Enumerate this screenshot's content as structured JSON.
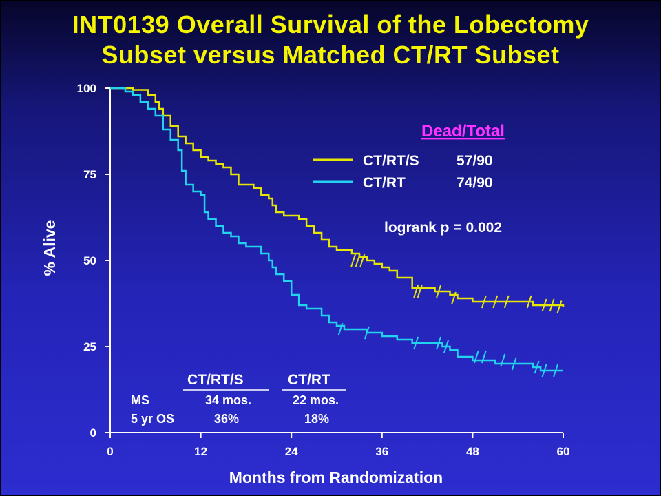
{
  "slide": {
    "title_line1": "INT0139 Overall Survival of the Lobectomy",
    "title_line2": "Subset versus Matched CT/RT Subset"
  },
  "colors": {
    "title": "#f5f500",
    "series1": "#e6e600",
    "series2": "#22d3ee",
    "dead_total": "#ff33ff",
    "text": "#ffffff"
  },
  "legend": {
    "heading": "Dead/Total",
    "rows": [
      {
        "label": "CT/RT/S",
        "value": "57/90"
      },
      {
        "label": "CT/RT",
        "value": "74/90"
      }
    ]
  },
  "annotation": "logrank p = 0.002",
  "summary_table": {
    "headers": [
      "CT/RT/S",
      "CT/RT"
    ],
    "rows": [
      {
        "label": "MS",
        "values": [
          "34 mos.",
          "22 mos."
        ]
      },
      {
        "label": "5 yr OS",
        "values": [
          "36%",
          "18%"
        ]
      }
    ]
  },
  "chart_data": {
    "type": "line",
    "step": true,
    "title": "INT0139 Overall Survival of the Lobectomy Subset versus Matched CT/RT Subset",
    "xlabel": "Months from Randomization",
    "ylabel": "% Alive",
    "xlim": [
      0,
      60
    ],
    "ylim": [
      0,
      100
    ],
    "xticks": [
      0,
      12,
      24,
      36,
      48,
      60
    ],
    "yticks": [
      0,
      25,
      50,
      75,
      100
    ],
    "legend_position": "top-right",
    "grid": false,
    "series": [
      {
        "name": "CT/RT/S",
        "color": "#e6e600",
        "points": [
          [
            0,
            100
          ],
          [
            3,
            99.5
          ],
          [
            5,
            98
          ],
          [
            6,
            96
          ],
          [
            6.5,
            94
          ],
          [
            7,
            92
          ],
          [
            8,
            89
          ],
          [
            9,
            86
          ],
          [
            10,
            84
          ],
          [
            11,
            82
          ],
          [
            12,
            80
          ],
          [
            13,
            79
          ],
          [
            14,
            78
          ],
          [
            15,
            77
          ],
          [
            16,
            75
          ],
          [
            17,
            72
          ],
          [
            18,
            72
          ],
          [
            19,
            71
          ],
          [
            20,
            69
          ],
          [
            21,
            68
          ],
          [
            21.5,
            66
          ],
          [
            22,
            64
          ],
          [
            23,
            63
          ],
          [
            24,
            63
          ],
          [
            25,
            62
          ],
          [
            26,
            60
          ],
          [
            27,
            58
          ],
          [
            28,
            56
          ],
          [
            29,
            54
          ],
          [
            30,
            53
          ],
          [
            31,
            53
          ],
          [
            32,
            52
          ],
          [
            33,
            51
          ],
          [
            34,
            50
          ],
          [
            35,
            49
          ],
          [
            36,
            48
          ],
          [
            37,
            47
          ],
          [
            38,
            45
          ],
          [
            39,
            45
          ],
          [
            40,
            42
          ],
          [
            41,
            42
          ],
          [
            42,
            42
          ],
          [
            43,
            41
          ],
          [
            44,
            41
          ],
          [
            45,
            40
          ],
          [
            46,
            39
          ],
          [
            47,
            39
          ],
          [
            48,
            38
          ],
          [
            50,
            38
          ],
          [
            52,
            38
          ],
          [
            54,
            38
          ],
          [
            56,
            37
          ],
          [
            58,
            37
          ],
          [
            60,
            36.5
          ]
        ],
        "censors": [
          [
            32.2,
            50
          ],
          [
            32.8,
            50
          ],
          [
            33.4,
            50
          ],
          [
            40.5,
            41
          ],
          [
            41,
            41
          ],
          [
            43.5,
            41
          ],
          [
            45.5,
            39
          ],
          [
            49.5,
            38
          ],
          [
            51,
            38
          ],
          [
            52.5,
            38
          ],
          [
            55.5,
            38
          ],
          [
            57.5,
            37
          ],
          [
            58.5,
            37
          ],
          [
            59.5,
            36.5
          ]
        ]
      },
      {
        "name": "CT/RT",
        "color": "#22d3ee",
        "points": [
          [
            0,
            100
          ],
          [
            2,
            99
          ],
          [
            3,
            98
          ],
          [
            4,
            96
          ],
          [
            5,
            94
          ],
          [
            6,
            92
          ],
          [
            7,
            88
          ],
          [
            8,
            85
          ],
          [
            9,
            82
          ],
          [
            9.5,
            76
          ],
          [
            10,
            72
          ],
          [
            11,
            70
          ],
          [
            12,
            69
          ],
          [
            12.5,
            64
          ],
          [
            13,
            62
          ],
          [
            14,
            60
          ],
          [
            15,
            58
          ],
          [
            16,
            57
          ],
          [
            17,
            55
          ],
          [
            18,
            54
          ],
          [
            19,
            54
          ],
          [
            20,
            52
          ],
          [
            21,
            50
          ],
          [
            21.5,
            48
          ],
          [
            22,
            46
          ],
          [
            23,
            44
          ],
          [
            24,
            40
          ],
          [
            25,
            37
          ],
          [
            26,
            36
          ],
          [
            27,
            36
          ],
          [
            28,
            34
          ],
          [
            29,
            32
          ],
          [
            30,
            31
          ],
          [
            31,
            30
          ],
          [
            32,
            30
          ],
          [
            33,
            30
          ],
          [
            34,
            29
          ],
          [
            35,
            29
          ],
          [
            36,
            28
          ],
          [
            37,
            28
          ],
          [
            38,
            27
          ],
          [
            39,
            27
          ],
          [
            40,
            26
          ],
          [
            41,
            26
          ],
          [
            42,
            26
          ],
          [
            44,
            25
          ],
          [
            45,
            24
          ],
          [
            46,
            22
          ],
          [
            47,
            22
          ],
          [
            48,
            21
          ],
          [
            50,
            21
          ],
          [
            51,
            20
          ],
          [
            52,
            20
          ],
          [
            54,
            20
          ],
          [
            56,
            19
          ],
          [
            57,
            18
          ],
          [
            58,
            18
          ],
          [
            60,
            18
          ]
        ],
        "censors": [
          [
            30.5,
            30
          ],
          [
            34,
            29
          ],
          [
            40.5,
            26
          ],
          [
            43.5,
            26
          ],
          [
            44.5,
            25
          ],
          [
            48.5,
            22
          ],
          [
            49.5,
            22
          ],
          [
            52,
            21
          ],
          [
            53.5,
            20
          ],
          [
            56.5,
            19
          ],
          [
            57.5,
            18
          ],
          [
            59,
            18
          ]
        ]
      }
    ]
  }
}
